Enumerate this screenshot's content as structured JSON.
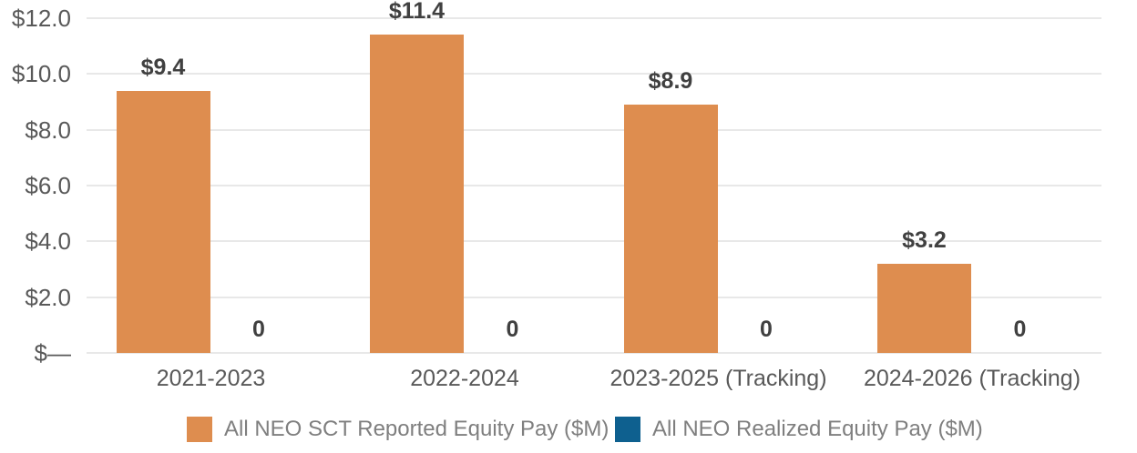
{
  "colors": {
    "background": "#ffffff",
    "bar_reported": "#de8d4f",
    "bar_realized": "#0e608f",
    "gridline": "#e8e8e8",
    "axis_text": "#595959",
    "data_label_text": "#404040",
    "legend_text": "#7f7f7f"
  },
  "chart_data": {
    "type": "bar",
    "title": "",
    "xlabel": "",
    "ylabel": "",
    "grid": true,
    "legend_position": "bottom",
    "categories": [
      "2021-2023",
      "2022-2024",
      "2023-2025 (Tracking)",
      "2024-2026 (Tracking)"
    ],
    "series": [
      {
        "name": "All NEO SCT Reported Equity Pay ($M)",
        "color": "#de8d4f",
        "values": [
          9.4,
          11.4,
          8.9,
          3.2
        ],
        "labels": [
          "$9.4",
          "$11.4",
          "$8.9",
          "$3.2"
        ]
      },
      {
        "name": "All NEO Realized Equity Pay ($M)",
        "color": "#0e608f",
        "values": [
          0,
          0,
          0,
          0
        ],
        "labels": [
          "0",
          "0",
          "0",
          "0"
        ]
      }
    ],
    "y_axis": {
      "min": 0,
      "max": 12,
      "ticks": [
        {
          "value": 12,
          "label": "$12.0"
        },
        {
          "value": 10,
          "label": "$10.0"
        },
        {
          "value": 8,
          "label": "$8.0"
        },
        {
          "value": 6,
          "label": "$6.0"
        },
        {
          "value": 4,
          "label": "$4.0"
        },
        {
          "value": 2,
          "label": "$2.0"
        },
        {
          "value": 0,
          "label": "$—"
        }
      ]
    }
  }
}
